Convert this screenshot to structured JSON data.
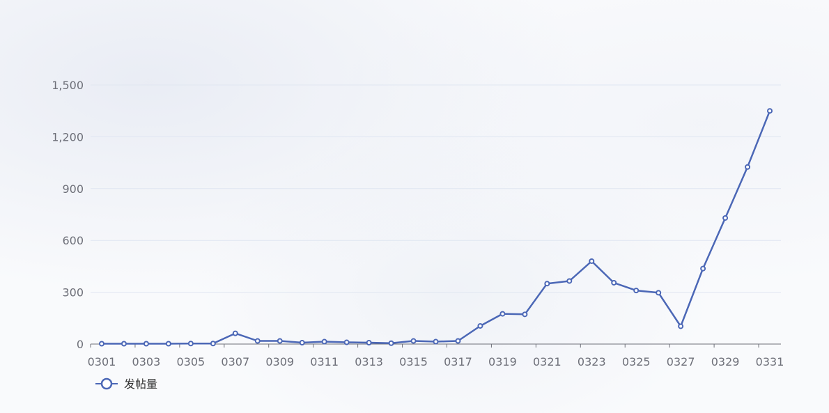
{
  "chart_data": {
    "type": "line",
    "categories": [
      "0301",
      "0302",
      "0303",
      "0304",
      "0305",
      "0306",
      "0307",
      "0308",
      "0309",
      "0310",
      "0311",
      "0312",
      "0313",
      "0314",
      "0315",
      "0316",
      "0317",
      "0318",
      "0319",
      "0320",
      "0321",
      "0322",
      "0323",
      "0324",
      "0325",
      "0326",
      "0327",
      "0328",
      "0329",
      "0330",
      "0331"
    ],
    "x_tick_labels": [
      "0301",
      "0303",
      "0305",
      "0307",
      "0309",
      "0311",
      "0313",
      "0315",
      "0317",
      "0319",
      "0321",
      "0323",
      "0325",
      "0327",
      "0329",
      "0331"
    ],
    "series": [
      {
        "name": "发帖量",
        "values": [
          2,
          2,
          2,
          2,
          3,
          3,
          62,
          18,
          18,
          8,
          14,
          10,
          8,
          5,
          18,
          14,
          18,
          105,
          175,
          172,
          350,
          365,
          480,
          355,
          310,
          297,
          103,
          437,
          730,
          1025,
          1350
        ],
        "color": "#4b67b6"
      }
    ],
    "ylim": [
      0,
      1500
    ],
    "y_ticks": [
      0,
      300,
      600,
      900,
      1200,
      1500
    ],
    "y_tick_labels": [
      "0",
      "300",
      "600",
      "900",
      "1,200",
      "1,500"
    ],
    "grid": true,
    "legend_position": "bottom-left"
  }
}
